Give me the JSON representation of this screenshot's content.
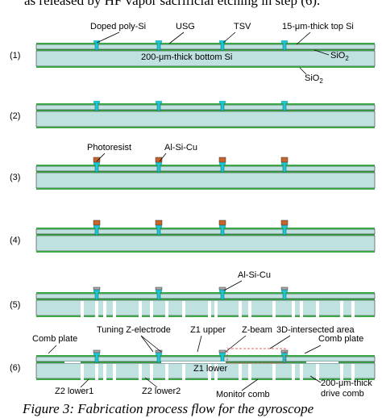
{
  "header": {
    "text": "as released by HF vapor sacrificial etching in step (6)."
  },
  "steps": [
    "(1)",
    "(2)",
    "(3)",
    "(4)",
    "(5)",
    "(6)"
  ],
  "labels": {
    "doped_poly": "Doped poly-Si",
    "usg": "USG",
    "tsv": "TSV",
    "top_si": "15-μm-thick top Si",
    "bottom_si": "200-μm-thick bottom Si",
    "sio2_top": {
      "base": "SiO",
      "sub": "2"
    },
    "sio2_bottom": {
      "base": "SiO",
      "sub": "2"
    },
    "photoresist": "Photoresist",
    "al_3": "Al-Si-Cu",
    "al_5": "Al-Si-Cu",
    "comb_plate_left": "Comb plate",
    "tuning": "Tuning Z-electrode",
    "z1_upper": "Z1 upper",
    "z_beam": "Z-beam",
    "intersect": "3D-intersected area",
    "comb_plate_right": "Comb plate",
    "z1_lower": "Z1 lower",
    "z2_lower1": "Z2 lower1",
    "z2_lower2": "Z2 lower2",
    "monitor": "Monitor comb",
    "drive": [
      "200-μm-thick",
      "drive comb"
    ]
  },
  "caption": "Figure 3: Fabrication process flow for the gyroscope"
}
